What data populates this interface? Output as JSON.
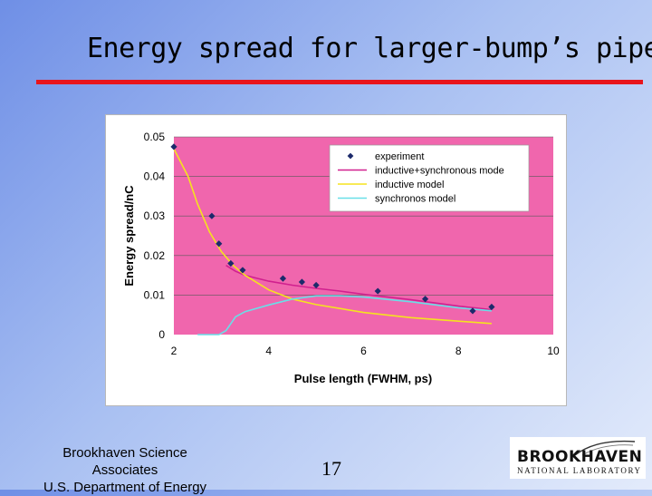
{
  "slide": {
    "title": "Energy spread for larger-bump’s pipe",
    "page_number": "17",
    "footer_line1": "Brookhaven Science",
    "footer_line2": "Associates",
    "footer_line3": "U.S. Department of Energy",
    "logo_main": "BROOKHAVEN",
    "logo_sub": "NATIONAL LABORATORY",
    "title_rule_color": "#e8151c"
  },
  "chart_data": {
    "type": "line",
    "title": "",
    "xlabel": "Pulse length (FWHM, ps)",
    "ylabel": "Energy spread/nC",
    "xlim": [
      2,
      10
    ],
    "ylim": [
      0,
      0.05
    ],
    "xticks": [
      "2",
      "4",
      "6",
      "8",
      "10"
    ],
    "yticks": [
      "0",
      "0.01",
      "0.02",
      "0.03",
      "0.04",
      "0.05"
    ],
    "plot_background": "#f066ad",
    "legend_position": "top-right",
    "series": [
      {
        "name": "experiment",
        "kind": "scatter",
        "color": "#1c2a6b",
        "x": [
          2.0,
          2.8,
          2.95,
          3.2,
          3.45,
          4.3,
          4.7,
          5.0,
          6.3,
          7.3,
          8.3,
          8.7
        ],
        "y": [
          0.0475,
          0.03,
          0.023,
          0.018,
          0.0163,
          0.0142,
          0.0133,
          0.0125,
          0.011,
          0.009,
          0.006,
          0.007
        ]
      },
      {
        "name": "inductive+synchronous mode",
        "kind": "line",
        "color": "#d1208f",
        "x": [
          3.1,
          3.3,
          3.5,
          4.0,
          4.5,
          5.0,
          5.5,
          6.0,
          7.0,
          8.0,
          8.7
        ],
        "y": [
          0.0175,
          0.016,
          0.015,
          0.0135,
          0.0125,
          0.0117,
          0.011,
          0.0102,
          0.0088,
          0.0072,
          0.0063
        ]
      },
      {
        "name": "inductive model",
        "kind": "line",
        "color": "#f5e31e",
        "x": [
          2.0,
          2.3,
          2.5,
          2.75,
          3.0,
          3.25,
          3.5,
          4.0,
          4.5,
          5.0,
          5.5,
          6.0,
          7.0,
          8.0,
          8.7
        ],
        "y": [
          0.047,
          0.04,
          0.033,
          0.026,
          0.021,
          0.0175,
          0.015,
          0.0113,
          0.009,
          0.0076,
          0.0066,
          0.0056,
          0.0043,
          0.0034,
          0.0028
        ]
      },
      {
        "name": "synchronos model",
        "kind": "line",
        "color": "#69dfe8",
        "x": [
          2.5,
          2.95,
          3.1,
          3.3,
          3.5,
          4.0,
          4.5,
          5.0,
          5.5,
          6.0,
          7.0,
          8.0,
          8.7
        ],
        "y": [
          0.0,
          0.0,
          0.001,
          0.0045,
          0.0058,
          0.0075,
          0.009,
          0.0098,
          0.0098,
          0.0095,
          0.0083,
          0.0068,
          0.006
        ]
      }
    ]
  }
}
